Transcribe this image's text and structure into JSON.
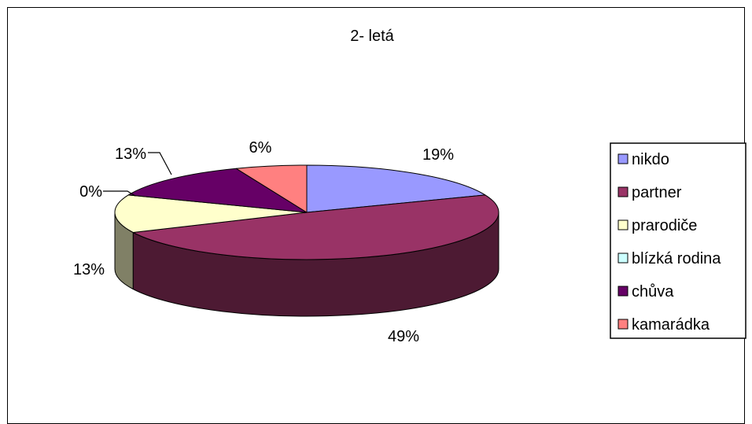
{
  "chart_data": {
    "type": "pie",
    "title": "2- letá",
    "three_d": true,
    "legend_position": "right",
    "slices": [
      {
        "label": "nikdo",
        "value": 19,
        "value_label": "19%",
        "color": "#9999FF"
      },
      {
        "label": "partner",
        "value": 49,
        "value_label": "49%",
        "color": "#993366"
      },
      {
        "label": "prarodiče",
        "value": 13,
        "value_label": "13%",
        "color": "#FFFFCC"
      },
      {
        "label": "blízká rodina",
        "value": 0,
        "value_label": "0%",
        "color": "#CCFFFF"
      },
      {
        "label": "chůva",
        "value": 13,
        "value_label": "13%",
        "color": "#660066"
      },
      {
        "label": "kamarádka",
        "value": 6,
        "value_label": "6%",
        "color": "#FF8080"
      }
    ]
  }
}
